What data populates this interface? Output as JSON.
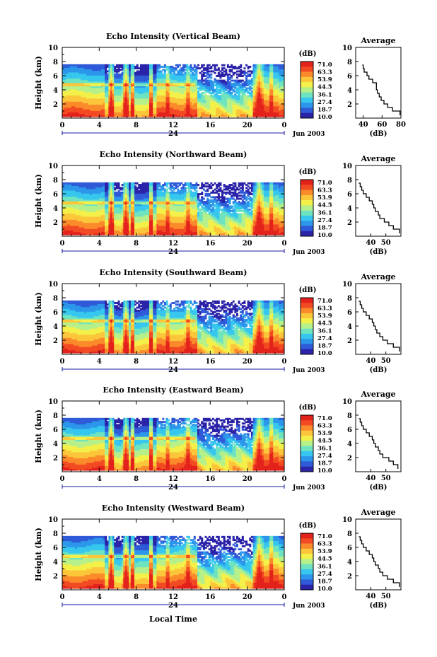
{
  "x_axis_label": "Local Time",
  "colorbar": {
    "unit": "(dB)",
    "ticks": [
      "71.0",
      "63.3",
      "53.9",
      "44.5",
      "36.1",
      "27.4",
      "18.7",
      "10.0"
    ],
    "colormap": [
      "#2b23a8",
      "#2f5ad8",
      "#2c96ea",
      "#37c7ee",
      "#6ee3c0",
      "#b6f08a",
      "#f4f04a",
      "#fcc63a",
      "#fb8a2b",
      "#f24a22",
      "#e3221c"
    ]
  },
  "date_label": "Jun 2003",
  "date_day": "24",
  "colors": {
    "axis": "#000000",
    "date_axis": "#1a1aa0",
    "missing": "#ffffff"
  },
  "chart_data": [
    {
      "type": "heatmap",
      "title": "Echo Intensity (Vertical Beam)",
      "xlabel": "",
      "ylabel": "Height (km)",
      "x_ticks": [
        "0",
        "4",
        "8",
        "12",
        "16",
        "20",
        "0"
      ],
      "y_ticks": [
        "2",
        "4",
        "6",
        "8",
        "10"
      ],
      "xlim": [
        0,
        24
      ],
      "ylim": [
        0,
        10
      ],
      "value_range": [
        10.0,
        71.0
      ],
      "profile": {
        "title": "Average",
        "xlabel": "(dB)",
        "xlim": [
          32,
          80
        ],
        "x_ticks": [
          "40",
          "60",
          "80"
        ],
        "y_ticks": [
          "2",
          "4",
          "6",
          "8",
          "10"
        ],
        "ylim": [
          0,
          10
        ],
        "heights": [
          0.4,
          1.0,
          1.5,
          2.0,
          2.5,
          3.0,
          3.5,
          4.0,
          4.5,
          5.0,
          5.5,
          6.0,
          6.5,
          7.0,
          7.5
        ],
        "values": [
          79,
          71,
          66,
          62,
          59,
          57,
          55,
          54,
          54,
          50,
          46,
          44,
          41,
          40,
          39
        ]
      }
    },
    {
      "type": "heatmap",
      "title": "Echo Intensity (Northward Beam)",
      "xlabel": "",
      "ylabel": "Height (km)",
      "x_ticks": [
        "0",
        "4",
        "8",
        "12",
        "16",
        "20",
        "0"
      ],
      "y_ticks": [
        "2",
        "4",
        "6",
        "8",
        "10"
      ],
      "xlim": [
        0,
        24
      ],
      "ylim": [
        0,
        10
      ],
      "value_range": [
        10.0,
        71.0
      ],
      "profile": {
        "title": "Average",
        "xlabel": "(dB)",
        "xlim": [
          30,
          60
        ],
        "x_ticks": [
          "40",
          "50"
        ],
        "y_ticks": [
          "2",
          "4",
          "6",
          "8",
          "10"
        ],
        "ylim": [
          0,
          10
        ],
        "heights": [
          0.4,
          1.0,
          1.5,
          2.0,
          2.5,
          3.0,
          3.5,
          4.0,
          4.5,
          5.0,
          5.5,
          6.0,
          6.5,
          7.0,
          7.5
        ],
        "values": [
          59,
          55,
          52,
          49,
          46,
          45,
          43,
          42,
          41,
          39,
          37,
          35,
          34,
          33,
          32
        ]
      }
    },
    {
      "type": "heatmap",
      "title": "Echo Intensity (Southward Beam)",
      "xlabel": "",
      "ylabel": "Height (km)",
      "x_ticks": [
        "0",
        "4",
        "8",
        "12",
        "16",
        "20",
        "0"
      ],
      "y_ticks": [
        "2",
        "4",
        "6",
        "8",
        "10"
      ],
      "xlim": [
        0,
        24
      ],
      "ylim": [
        0,
        10
      ],
      "value_range": [
        10.0,
        71.0
      ],
      "profile": {
        "title": "Average",
        "xlabel": "(dB)",
        "xlim": [
          30,
          60
        ],
        "x_ticks": [
          "40",
          "50"
        ],
        "y_ticks": [
          "2",
          "4",
          "6",
          "8",
          "10"
        ],
        "ylim": [
          0,
          10
        ],
        "heights": [
          0.4,
          1.0,
          1.5,
          2.0,
          2.5,
          3.0,
          3.5,
          4.0,
          4.5,
          5.0,
          5.5,
          6.0,
          6.5,
          7.0,
          7.5
        ],
        "values": [
          59,
          55,
          51,
          48,
          46,
          44,
          43,
          42,
          41,
          39,
          37,
          35,
          34,
          33,
          32
        ]
      }
    },
    {
      "type": "heatmap",
      "title": "Echo Intensity (Eastward Beam)",
      "xlabel": "",
      "ylabel": "Height (km)",
      "x_ticks": [
        "0",
        "4",
        "8",
        "12",
        "16",
        "20",
        "0"
      ],
      "y_ticks": [
        "2",
        "4",
        "6",
        "8",
        "10"
      ],
      "xlim": [
        0,
        24
      ],
      "ylim": [
        0,
        10
      ],
      "value_range": [
        10.0,
        71.0
      ],
      "profile": {
        "title": "Average",
        "xlabel": "(dB)",
        "xlim": [
          30,
          60
        ],
        "x_ticks": [
          "40",
          "50"
        ],
        "y_ticks": [
          "2",
          "4",
          "6",
          "8",
          "10"
        ],
        "ylim": [
          0,
          10
        ],
        "heights": [
          0.4,
          1.0,
          1.5,
          2.0,
          2.5,
          3.0,
          3.5,
          4.0,
          4.5,
          5.0,
          5.5,
          6.0,
          6.5,
          7.0,
          7.5
        ],
        "values": [
          58,
          55,
          52,
          48,
          46,
          45,
          43,
          42,
          41,
          39,
          37,
          35,
          34,
          33,
          32
        ]
      }
    },
    {
      "type": "heatmap",
      "title": "Echo Intensity (Westward Beam)",
      "xlabel": "",
      "ylabel": "Height (km)",
      "x_ticks": [
        "0",
        "4",
        "8",
        "12",
        "16",
        "20",
        "0"
      ],
      "y_ticks": [
        "2",
        "4",
        "6",
        "8",
        "10"
      ],
      "xlim": [
        0,
        24
      ],
      "ylim": [
        0,
        10
      ],
      "value_range": [
        10.0,
        71.0
      ],
      "profile": {
        "title": "Average",
        "xlabel": "(dB)",
        "xlim": [
          30,
          60
        ],
        "x_ticks": [
          "40",
          "50"
        ],
        "y_ticks": [
          "2",
          "4",
          "6",
          "8",
          "10"
        ],
        "ylim": [
          0,
          10
        ],
        "heights": [
          0.4,
          1.0,
          1.5,
          2.0,
          2.5,
          3.0,
          3.5,
          4.0,
          4.5,
          5.0,
          5.5,
          6.0,
          6.5,
          7.0,
          7.5
        ],
        "values": [
          59,
          55,
          51,
          48,
          46,
          45,
          43,
          42,
          41,
          39,
          37,
          35,
          34,
          33,
          32
        ]
      }
    }
  ]
}
